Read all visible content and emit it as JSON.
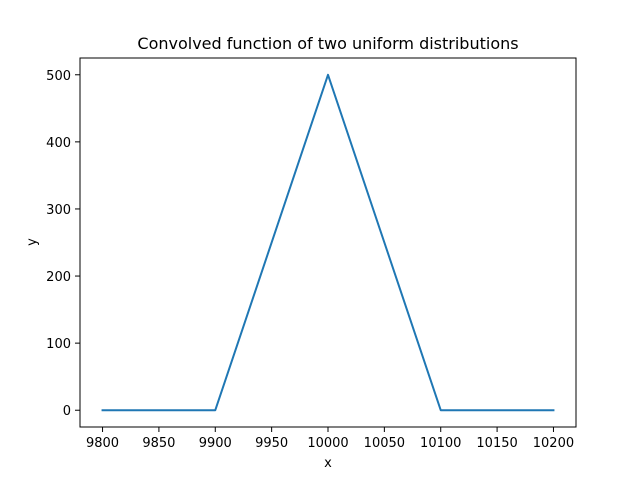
{
  "chart_data": {
    "type": "line",
    "title": "Convolved function of two uniform distributions",
    "xlabel": "x",
    "ylabel": "y",
    "xlim": [
      9780,
      10220
    ],
    "ylim": [
      -25,
      525
    ],
    "xticks": [
      9800,
      9850,
      9900,
      9950,
      10000,
      10050,
      10100,
      10150,
      10200
    ],
    "xtick_labels": [
      "9800",
      "9850",
      "9900",
      "9950",
      "10000",
      "10050",
      "10100",
      "10150",
      "10200"
    ],
    "yticks": [
      0,
      100,
      200,
      300,
      400,
      500
    ],
    "ytick_labels": [
      "0",
      "100",
      "200",
      "300",
      "400",
      "500"
    ],
    "grid": false,
    "series": [
      {
        "color": "#1f77b4",
        "x": [
          9800,
          9900,
          10000,
          10100,
          10200
        ],
        "y": [
          0,
          0,
          500,
          0,
          0
        ]
      }
    ]
  }
}
